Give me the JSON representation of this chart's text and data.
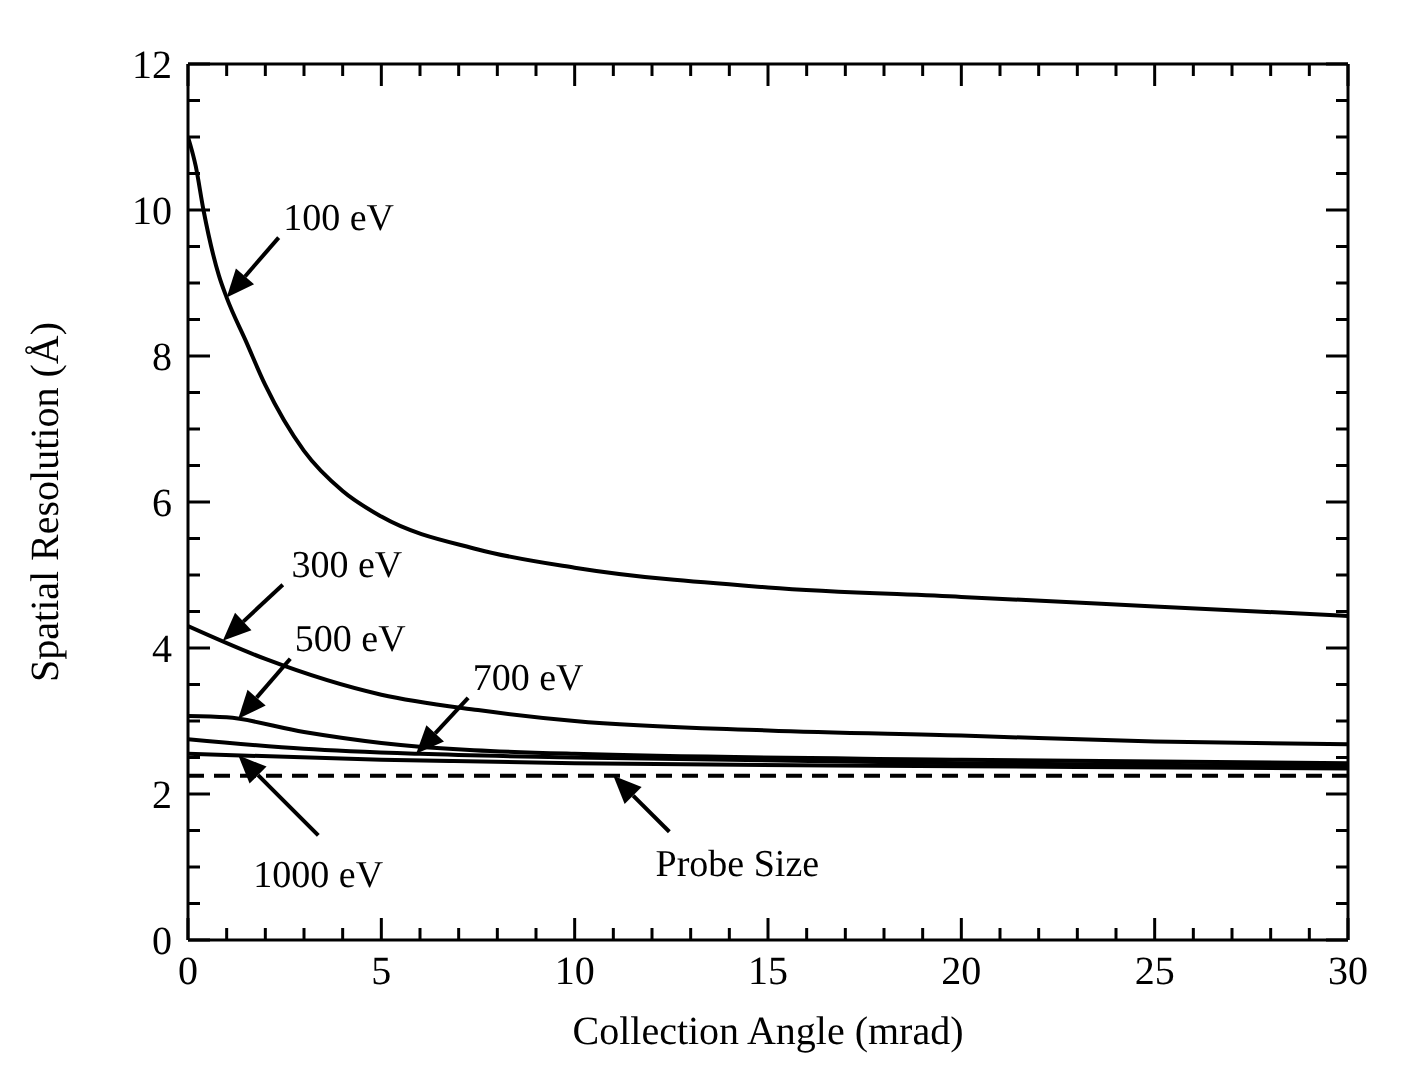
{
  "chart_data": {
    "type": "line",
    "xlabel": "Collection Angle (mrad)",
    "ylabel": "Spatial Resolution (Å)",
    "xlim": [
      0,
      30
    ],
    "ylim": [
      0,
      12
    ],
    "xticks": [
      0,
      {
        "value": 1,
        "label": null
      },
      {
        "value": 2,
        "label": null
      },
      {
        "value": 3,
        "label": null
      },
      {
        "value": 4,
        "label": null
      },
      5,
      {
        "value": 6,
        "label": null
      },
      {
        "value": 7,
        "label": null
      },
      {
        "value": 8,
        "label": null
      },
      {
        "value": 9,
        "label": null
      },
      10,
      {
        "value": 11,
        "label": null
      },
      {
        "value": 12,
        "label": null
      },
      {
        "value": 13,
        "label": null
      },
      {
        "value": 14,
        "label": null
      },
      15,
      {
        "value": 16,
        "label": null
      },
      {
        "value": 17,
        "label": null
      },
      {
        "value": 18,
        "label": null
      },
      {
        "value": 19,
        "label": null
      },
      20,
      {
        "value": 21,
        "label": null
      },
      {
        "value": 22,
        "label": null
      },
      {
        "value": 23,
        "label": null
      },
      {
        "value": 24,
        "label": null
      },
      25,
      {
        "value": 26,
        "label": null
      },
      {
        "value": 27,
        "label": null
      },
      {
        "value": 28,
        "label": null
      },
      {
        "value": 29,
        "label": null
      },
      30
    ],
    "yticks": [
      0,
      {
        "value": 0.5,
        "label": null
      },
      {
        "value": 1,
        "label": null
      },
      {
        "value": 1.5,
        "label": null
      },
      2,
      {
        "value": 2.5,
        "label": null
      },
      {
        "value": 3,
        "label": null
      },
      {
        "value": 3.5,
        "label": null
      },
      4,
      {
        "value": 4.5,
        "label": null
      },
      {
        "value": 5,
        "label": null
      },
      {
        "value": 5.5,
        "label": null
      },
      6,
      {
        "value": 6.5,
        "label": null
      },
      {
        "value": 7,
        "label": null
      },
      {
        "value": 7.5,
        "label": null
      },
      8,
      {
        "value": 8.5,
        "label": null
      },
      {
        "value": 9,
        "label": null
      },
      {
        "value": 9.5,
        "label": null
      },
      10,
      {
        "value": 10.5,
        "label": null
      },
      {
        "value": 11,
        "label": null
      },
      {
        "value": 11.5,
        "label": null
      },
      12
    ],
    "grid": false,
    "marker": "none",
    "line_style": "solid",
    "series": [
      {
        "color": "#000000",
        "x": [
          0,
          0.2,
          0.4,
          0.8,
          1,
          1.5,
          2,
          3,
          4,
          5,
          7.5,
          10,
          15,
          20,
          25,
          30
        ],
        "values": [
          11,
          10.6,
          10,
          9.1,
          8.8,
          8.2,
          7.6,
          6.7,
          6.15,
          5.8,
          5.35,
          5.1,
          4.83,
          4.7,
          4.57,
          4.44
        ]
      },
      {
        "color": "#000000",
        "x": [
          0,
          2,
          5,
          7.5,
          10,
          15,
          20,
          25,
          30
        ],
        "values": [
          4.3,
          3.85,
          3.36,
          3.15,
          3.0,
          2.87,
          2.8,
          2.72,
          2.68
        ]
      },
      {
        "color": "#000000",
        "x": [
          0,
          1,
          3,
          5,
          10,
          20,
          30
        ],
        "values": [
          3.07,
          3.05,
          2.85,
          2.7,
          2.55,
          2.47,
          2.42
        ]
      },
      {
        "color": "#000000",
        "x": [
          0,
          3,
          6,
          10,
          20,
          30
        ],
        "values": [
          2.75,
          2.62,
          2.55,
          2.5,
          2.42,
          2.38
        ]
      },
      {
        "color": "#000000",
        "x": [
          0,
          5,
          10,
          20,
          30
        ],
        "values": [
          2.55,
          2.47,
          2.42,
          2.38,
          2.35
        ]
      }
    ],
    "ref_lines": [
      {
        "axis": "y",
        "value": 2.25,
        "color": "#000000",
        "line_style": "dashed"
      }
    ],
    "annotations": [
      {
        "text": "100 eV",
        "x": 1,
        "y": 8.8
      },
      {
        "text": "300 eV",
        "x": 0.9,
        "y": 4.1
      },
      {
        "text": "500 eV",
        "x": 1.3,
        "y": 3.03
      },
      {
        "text": "700 eV",
        "x": 5.9,
        "y": 2.55
      },
      {
        "text": "1000 eV",
        "x": 1.3,
        "y": 2.53
      },
      {
        "text": "Probe Size",
        "x": 11,
        "y": 2.25
      }
    ]
  }
}
